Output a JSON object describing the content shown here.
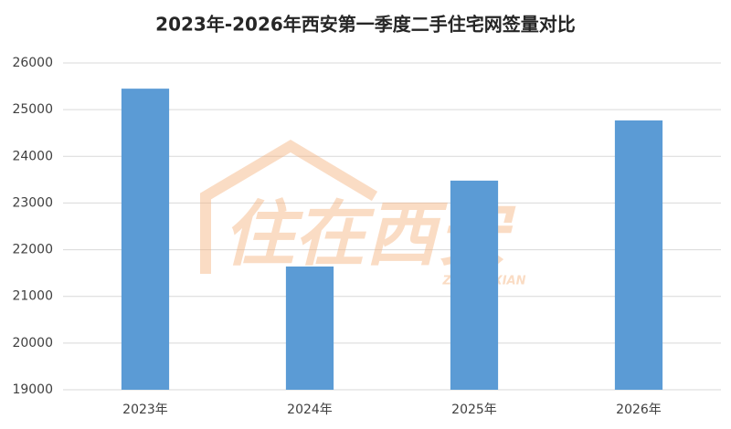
{
  "chart_data": {
    "type": "bar",
    "title": "2023年-2026年西安第一季度二手住宅网签量对比",
    "categories": [
      "2023年",
      "2024年",
      "2025年",
      "2026年"
    ],
    "values": [
      25450,
      21640,
      23480,
      24770
    ],
    "color": "#5b9bd5",
    "ylim": [
      19000,
      26000
    ],
    "yticks": [
      19000,
      20000,
      21000,
      22000,
      23000,
      24000,
      25000,
      26000
    ],
    "grid": true,
    "watermark": "住在西安",
    "watermark_sub": "ZHUZAIXIAN"
  }
}
